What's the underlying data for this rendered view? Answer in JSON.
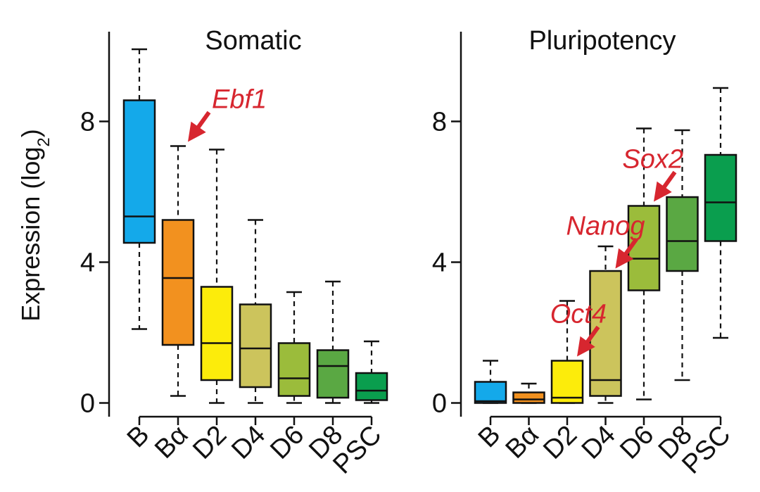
{
  "ylabel": "Expression (log",
  "ylabel_sub": "2",
  "ylabel_close": ")",
  "chart_data": [
    {
      "type": "box",
      "title": "Somatic",
      "categories": [
        "B",
        "Bα",
        "D2",
        "D4",
        "D6",
        "D8",
        "PSC"
      ],
      "yticks": [
        0,
        4,
        8
      ],
      "ylim": [
        -0.4,
        10.5
      ],
      "boxes": [
        {
          "min": 2.1,
          "q1": 4.55,
          "median": 5.3,
          "q3": 8.6,
          "max": 10.05
        },
        {
          "min": 0.2,
          "q1": 1.65,
          "median": 3.55,
          "q3": 5.2,
          "max": 7.3
        },
        {
          "min": 0.0,
          "q1": 0.65,
          "median": 1.7,
          "q3": 3.3,
          "max": 7.2
        },
        {
          "min": 0.0,
          "q1": 0.45,
          "median": 1.55,
          "q3": 2.8,
          "max": 5.2
        },
        {
          "min": 0.0,
          "q1": 0.2,
          "median": 0.7,
          "q3": 1.7,
          "max": 3.15
        },
        {
          "min": 0.0,
          "q1": 0.15,
          "median": 1.05,
          "q3": 1.5,
          "max": 3.45
        },
        {
          "min": 0.0,
          "q1": 0.08,
          "median": 0.35,
          "q3": 0.85,
          "max": 1.75
        }
      ],
      "annotations": [
        {
          "text": "Ebf1",
          "category": "Bα",
          "value": 7.5
        }
      ]
    },
    {
      "type": "box",
      "title": "Pluripotency",
      "categories": [
        "B",
        "Bα",
        "D2",
        "D4",
        "D6",
        "D8",
        "PSC"
      ],
      "yticks": [
        0,
        4,
        8
      ],
      "ylim": [
        -0.4,
        10.5
      ],
      "boxes": [
        {
          "min": 0.0,
          "q1": 0.0,
          "median": 0.05,
          "q3": 0.6,
          "max": 1.2
        },
        {
          "min": 0.0,
          "q1": 0.0,
          "median": 0.1,
          "q3": 0.3,
          "max": 0.55
        },
        {
          "min": 0.0,
          "q1": 0.0,
          "median": 0.15,
          "q3": 1.2,
          "max": 2.9
        },
        {
          "min": 0.0,
          "q1": 0.2,
          "median": 0.65,
          "q3": 3.75,
          "max": 4.45
        },
        {
          "min": 0.1,
          "q1": 3.2,
          "median": 4.1,
          "q3": 5.6,
          "max": 7.8
        },
        {
          "min": 0.65,
          "q1": 3.75,
          "median": 4.6,
          "q3": 5.85,
          "max": 7.75
        },
        {
          "min": 1.85,
          "q1": 4.6,
          "median": 5.7,
          "q3": 7.05,
          "max": 8.95
        }
      ],
      "annotations": [
        {
          "text": "Oct4",
          "category": "D2",
          "value": 1.4
        },
        {
          "text": "Nanog",
          "category": "D4",
          "value": 3.9
        },
        {
          "text": "Sox2",
          "category": "D6",
          "value": 5.8
        }
      ]
    }
  ],
  "colors": [
    "#14a9ea",
    "#f2911f",
    "#fcec0b",
    "#ccc45c",
    "#9bbc3b",
    "#5aa843",
    "#0a9e4e"
  ],
  "annotation_color": "#d7262f"
}
